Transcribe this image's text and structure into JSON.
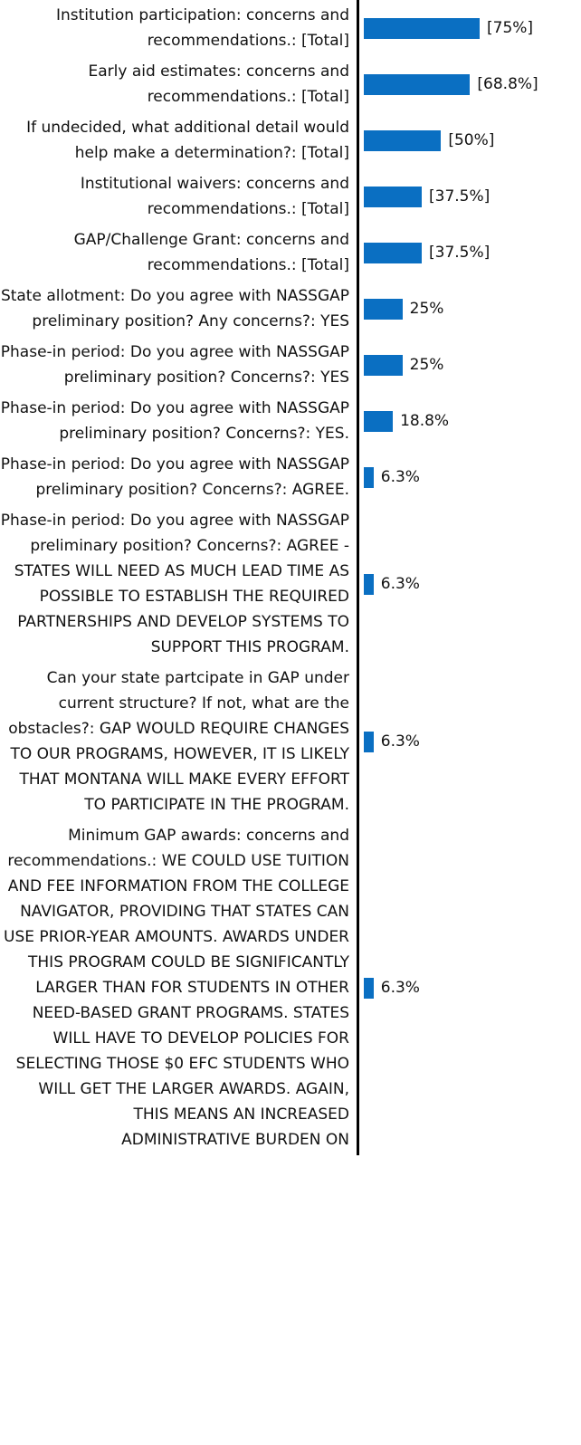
{
  "chart_data": {
    "type": "barh",
    "categories": [
      "Institution participation: concerns and recommendations.: [Total]",
      "Early aid estimates: concerns and recommendations.: [Total]",
      "If undecided, what additional detail would help make a determination?: [Total]",
      "Institutional waivers: concerns and recommendations.: [Total]",
      "GAP/Challenge Grant: concerns and recommendations.: [Total]",
      "State allotment: Do you agree with NASSGAP preliminary position? Any concerns?: YES",
      "Phase-in period: Do you agree with NASSGAP preliminary position? Concerns?: YES",
      "Phase-in period: Do you agree with NASSGAP preliminary position? Concerns?: YES.",
      "Phase-in period: Do you agree with NASSGAP preliminary position? Concerns?: AGREE.",
      "Phase-in period: Do you agree with NASSGAP preliminary position? Concerns?: AGREE - STATES WILL NEED AS MUCH LEAD TIME AS POSSIBLE TO ESTABLISH THE REQUIRED PARTNERSHIPS AND DEVELOP SYSTEMS TO SUPPORT THIS PROGRAM.",
      "Can your state partcipate in GAP under current structure? If not, what are the obstacles?: GAP WOULD REQUIRE CHANGES TO OUR PROGRAMS, HOWEVER, IT IS LIKELY THAT MONTANA WILL MAKE EVERY EFFORT TO PARTICIPATE IN THE PROGRAM.",
      "Minimum GAP awards: concerns and recommendations.: WE COULD USE TUITION AND FEE INFORMATION FROM THE COLLEGE NAVIGATOR, PROVIDING THAT STATES CAN USE PRIOR-YEAR AMOUNTS. AWARDS UNDER THIS PROGRAM COULD BE SIGNIFICANTLY LARGER THAN FOR STUDENTS IN OTHER NEED-BASED GRANT PROGRAMS. STATES WILL HAVE TO DEVELOP POLICIES FOR SELECTING THOSE $0 EFC STUDENTS WHO WILL GET THE LARGER AWARDS. AGAIN, THIS MEANS AN INCREASED ADMINISTRATIVE BURDEN ON"
    ],
    "values": [
      75,
      68.8,
      50,
      37.5,
      37.5,
      25,
      25,
      18.8,
      6.3,
      6.3,
      6.3,
      6.3
    ],
    "value_labels": [
      "[75%]",
      "[68.8%]",
      "[50%]",
      "[37.5%]",
      "[37.5%]",
      "25%",
      "25%",
      "18.8%",
      "6.3%",
      "6.3%",
      "6.3%",
      "6.3%"
    ],
    "color": "#0a6fc2",
    "xlim": [
      0,
      75
    ]
  }
}
